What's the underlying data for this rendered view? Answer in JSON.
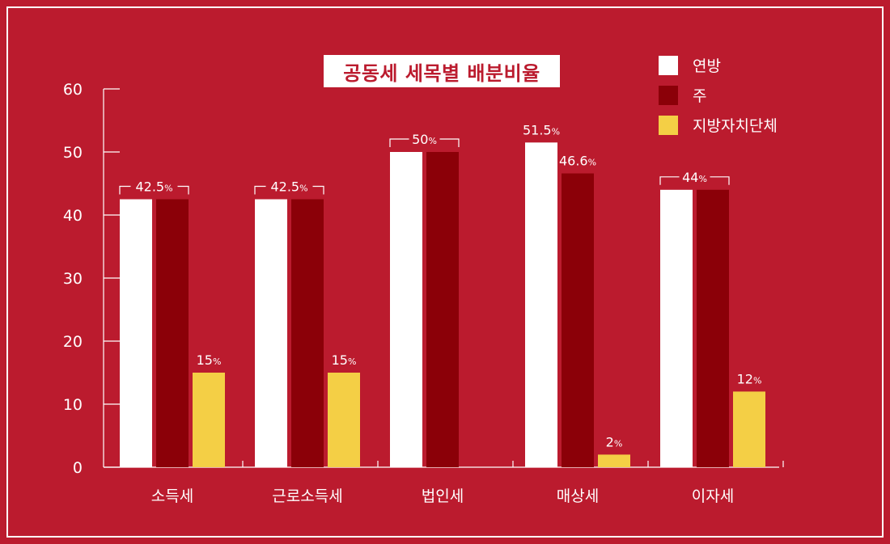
{
  "chart_data": {
    "type": "bar",
    "title": "공동세 세목별 배분비율",
    "categories": [
      "소득세",
      "근로소득세",
      "법인세",
      "매상세",
      "이자세"
    ],
    "series": [
      {
        "name": "연방",
        "values": [
          42.5,
          42.5,
          50,
          51.5,
          44
        ]
      },
      {
        "name": "주",
        "values": [
          42.5,
          42.5,
          50,
          46.6,
          44
        ]
      },
      {
        "name": "지방자치단체",
        "values": [
          15,
          15,
          0,
          2,
          12
        ]
      }
    ],
    "colors": [
      "#ffffff",
      "#8b0008",
      "#f4cf45"
    ],
    "background": "#bb1b2e",
    "ylim": [
      0,
      60
    ],
    "yticks": [
      "0",
      "10",
      "20",
      "30",
      "40",
      "50",
      "60"
    ],
    "data_labels": [
      {
        "category": 0,
        "series": [
          0,
          1
        ],
        "text": "42.5",
        "unit": "%",
        "bracket": true
      },
      {
        "category": 0,
        "series": [
          2
        ],
        "text": "15",
        "unit": "%",
        "bracket": false
      },
      {
        "category": 1,
        "series": [
          0,
          1
        ],
        "text": "42.5",
        "unit": "%",
        "bracket": true
      },
      {
        "category": 1,
        "series": [
          2
        ],
        "text": "15",
        "unit": "%",
        "bracket": false
      },
      {
        "category": 2,
        "series": [
          0,
          1
        ],
        "text": "50",
        "unit": "%",
        "bracket": true
      },
      {
        "category": 3,
        "series": [
          0
        ],
        "text": "51.5",
        "unit": "%",
        "bracket": false
      },
      {
        "category": 3,
        "series": [
          1
        ],
        "text": "46.6",
        "unit": "%",
        "bracket": false
      },
      {
        "category": 3,
        "series": [
          2
        ],
        "text": "2",
        "unit": "%",
        "bracket": false
      },
      {
        "category": 4,
        "series": [
          0,
          1
        ],
        "text": "44",
        "unit": "%",
        "bracket": true
      },
      {
        "category": 4,
        "series": [
          2
        ],
        "text": "12",
        "unit": "%",
        "bracket": false
      }
    ],
    "legend_position": "top-right",
    "grid": false
  }
}
